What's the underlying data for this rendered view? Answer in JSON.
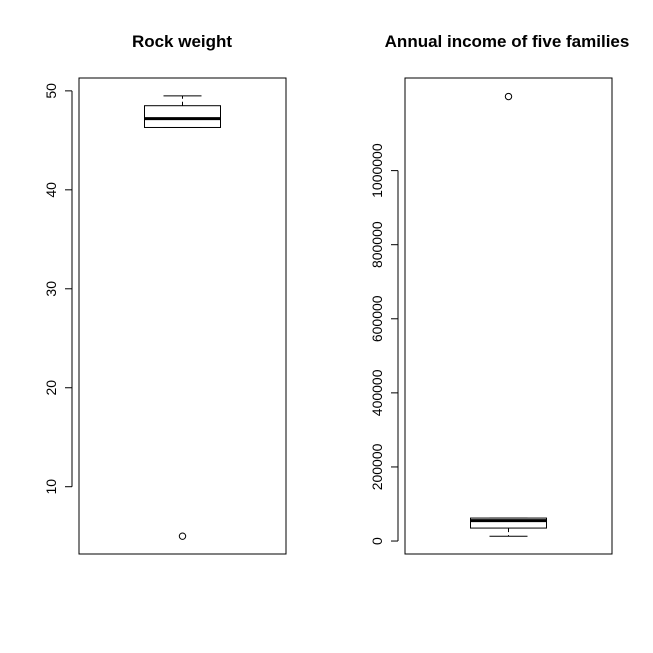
{
  "chart_data": [
    {
      "type": "boxplot",
      "title": "Rock weight",
      "xlabel": "",
      "ylabel": "",
      "yticks": [
        10,
        20,
        30,
        40,
        50
      ],
      "ytick_labels": [
        "10",
        "20",
        "30",
        "40",
        "50"
      ],
      "ylim": [
        3.2,
        51.3
      ],
      "box": {
        "whisker_low": 46.3,
        "q1": 46.3,
        "median": 47.2,
        "q3": 48.5,
        "whisker_high": 49.5
      },
      "outliers": [
        5.0
      ]
    },
    {
      "type": "boxplot",
      "title": "Annual income of five families",
      "xlabel": "",
      "ylabel": "",
      "yticks": [
        0,
        200000,
        400000,
        600000,
        800000,
        1000000
      ],
      "ytick_labels": [
        "0",
        "200000",
        "400000",
        "600000",
        "800000",
        "1000000"
      ],
      "ylim": [
        -35000,
        1250000
      ],
      "box": {
        "whisker_low": 13000,
        "q1": 35000,
        "median": 55000,
        "q3": 62000,
        "whisker_high": 62000
      },
      "outliers": [
        1200000
      ]
    }
  ]
}
